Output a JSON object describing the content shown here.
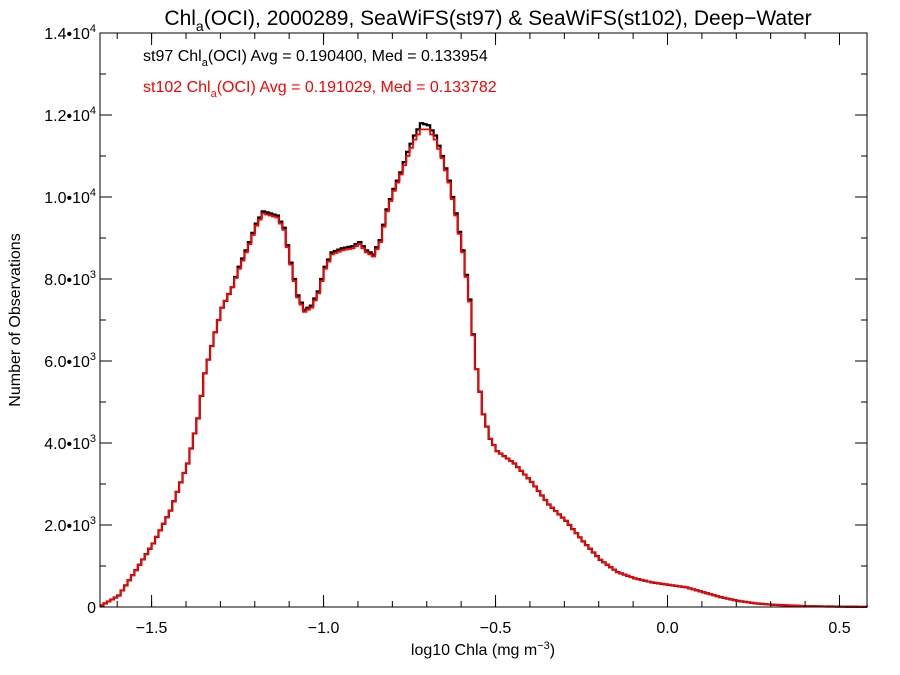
{
  "chart_data": {
    "type": "line",
    "title": {
      "main": "Chl",
      "sub": "a",
      "rest": "(OCI), 2000289, SeaWiFS(st97) & SeaWiFS(st102), Deep−Water"
    },
    "xlabel": {
      "main": "log10 Chla (mg m",
      "sup": "−3",
      "close": ")"
    },
    "ylabel": "Number of Observations",
    "xlim": [
      -1.65,
      0.58
    ],
    "ylim": [
      0,
      14000
    ],
    "x_ticks": [
      {
        "value": -1.5,
        "label": "−1.5"
      },
      {
        "value": -1.0,
        "label": "−1.0"
      },
      {
        "value": -0.5,
        "label": "−0.5"
      },
      {
        "value": 0.0,
        "label": "0.0"
      },
      {
        "value": 0.5,
        "label": "0.5"
      }
    ],
    "y_ticks": [
      {
        "value": 0,
        "mant": "0",
        "exp": ""
      },
      {
        "value": 2000,
        "mant": "2.0•10",
        "exp": "3"
      },
      {
        "value": 4000,
        "mant": "4.0•10",
        "exp": "3"
      },
      {
        "value": 6000,
        "mant": "6.0•10",
        "exp": "3"
      },
      {
        "value": 8000,
        "mant": "8.0•10",
        "exp": "3"
      },
      {
        "value": 10000,
        "mant": "1.0•10",
        "exp": "4"
      },
      {
        "value": 12000,
        "mant": "1.2•10",
        "exp": "4"
      },
      {
        "value": 14000,
        "mant": "1.4•10",
        "exp": "4"
      }
    ],
    "x_minor_step": 0.1,
    "y_minor_step": 1000,
    "legend": [
      {
        "prefix": "st97 Chl",
        "sub": "a",
        "suffix": "(OCI) Avg = 0.190400, Med = 0.133954",
        "color": "#000000"
      },
      {
        "prefix": "st102 Chl",
        "sub": "a",
        "suffix": "(OCI) Avg = 0.191029, Med = 0.133782",
        "color": "#ff0000"
      }
    ],
    "legend_position": "top-left",
    "grid": false,
    "series": [
      {
        "name": "st97",
        "color": "#000000",
        "points": [
          [
            -1.65,
            40
          ],
          [
            -1.6,
            280
          ],
          [
            -1.55,
            900
          ],
          [
            -1.5,
            1550
          ],
          [
            -1.45,
            2350
          ],
          [
            -1.4,
            3500
          ],
          [
            -1.37,
            4600
          ],
          [
            -1.35,
            5700
          ],
          [
            -1.32,
            6700
          ],
          [
            -1.3,
            7300
          ],
          [
            -1.27,
            7800
          ],
          [
            -1.25,
            8300
          ],
          [
            -1.22,
            8900
          ],
          [
            -1.2,
            9350
          ],
          [
            -1.18,
            9650
          ],
          [
            -1.16,
            9600
          ],
          [
            -1.14,
            9550
          ],
          [
            -1.12,
            9250
          ],
          [
            -1.1,
            8400
          ],
          [
            -1.08,
            7600
          ],
          [
            -1.06,
            7250
          ],
          [
            -1.04,
            7350
          ],
          [
            -1.02,
            7700
          ],
          [
            -1.0,
            8300
          ],
          [
            -0.98,
            8650
          ],
          [
            -0.95,
            8750
          ],
          [
            -0.92,
            8800
          ],
          [
            -0.9,
            8900
          ],
          [
            -0.88,
            8700
          ],
          [
            -0.86,
            8600
          ],
          [
            -0.84,
            8950
          ],
          [
            -0.82,
            9700
          ],
          [
            -0.8,
            10200
          ],
          [
            -0.78,
            10600
          ],
          [
            -0.76,
            11100
          ],
          [
            -0.74,
            11500
          ],
          [
            -0.72,
            11800
          ],
          [
            -0.7,
            11750
          ],
          [
            -0.68,
            11500
          ],
          [
            -0.66,
            11000
          ],
          [
            -0.64,
            10400
          ],
          [
            -0.62,
            9600
          ],
          [
            -0.6,
            8700
          ],
          [
            -0.58,
            7500
          ],
          [
            -0.56,
            5800
          ],
          [
            -0.54,
            4700
          ],
          [
            -0.52,
            4100
          ],
          [
            -0.5,
            3800
          ],
          [
            -0.45,
            3500
          ],
          [
            -0.4,
            3050
          ],
          [
            -0.35,
            2500
          ],
          [
            -0.3,
            2100
          ],
          [
            -0.25,
            1600
          ],
          [
            -0.2,
            1150
          ],
          [
            -0.15,
            850
          ],
          [
            -0.1,
            700
          ],
          [
            -0.05,
            600
          ],
          [
            0.0,
            540
          ],
          [
            0.05,
            480
          ],
          [
            0.1,
            360
          ],
          [
            0.15,
            240
          ],
          [
            0.2,
            150
          ],
          [
            0.25,
            90
          ],
          [
            0.3,
            55
          ],
          [
            0.4,
            20
          ],
          [
            0.5,
            8
          ],
          [
            0.58,
            3
          ]
        ]
      },
      {
        "name": "st102",
        "color": "#ff0000",
        "points": [
          [
            -1.65,
            40
          ],
          [
            -1.6,
            280
          ],
          [
            -1.55,
            900
          ],
          [
            -1.5,
            1550
          ],
          [
            -1.45,
            2350
          ],
          [
            -1.4,
            3500
          ],
          [
            -1.37,
            4600
          ],
          [
            -1.35,
            5700
          ],
          [
            -1.32,
            6700
          ],
          [
            -1.3,
            7300
          ],
          [
            -1.27,
            7800
          ],
          [
            -1.25,
            8250
          ],
          [
            -1.22,
            8850
          ],
          [
            -1.2,
            9300
          ],
          [
            -1.18,
            9600
          ],
          [
            -1.16,
            9550
          ],
          [
            -1.14,
            9500
          ],
          [
            -1.12,
            9200
          ],
          [
            -1.1,
            8350
          ],
          [
            -1.08,
            7550
          ],
          [
            -1.06,
            7200
          ],
          [
            -1.04,
            7300
          ],
          [
            -1.02,
            7650
          ],
          [
            -1.0,
            8250
          ],
          [
            -0.98,
            8600
          ],
          [
            -0.95,
            8700
          ],
          [
            -0.92,
            8750
          ],
          [
            -0.9,
            8850
          ],
          [
            -0.88,
            8650
          ],
          [
            -0.86,
            8550
          ],
          [
            -0.84,
            8900
          ],
          [
            -0.82,
            9650
          ],
          [
            -0.8,
            10150
          ],
          [
            -0.78,
            10550
          ],
          [
            -0.76,
            11000
          ],
          [
            -0.74,
            11400
          ],
          [
            -0.72,
            11650
          ],
          [
            -0.7,
            11650
          ],
          [
            -0.68,
            11400
          ],
          [
            -0.66,
            10950
          ],
          [
            -0.64,
            10350
          ],
          [
            -0.62,
            9550
          ],
          [
            -0.6,
            8650
          ],
          [
            -0.58,
            7450
          ],
          [
            -0.56,
            5800
          ],
          [
            -0.54,
            4700
          ],
          [
            -0.52,
            4100
          ],
          [
            -0.5,
            3800
          ],
          [
            -0.45,
            3500
          ],
          [
            -0.4,
            3050
          ],
          [
            -0.35,
            2500
          ],
          [
            -0.3,
            2100
          ],
          [
            -0.25,
            1600
          ],
          [
            -0.2,
            1150
          ],
          [
            -0.15,
            850
          ],
          [
            -0.1,
            700
          ],
          [
            -0.05,
            600
          ],
          [
            0.0,
            540
          ],
          [
            0.05,
            480
          ],
          [
            0.1,
            360
          ],
          [
            0.15,
            240
          ],
          [
            0.2,
            150
          ],
          [
            0.25,
            90
          ],
          [
            0.3,
            55
          ],
          [
            0.4,
            20
          ],
          [
            0.5,
            8
          ],
          [
            0.58,
            3
          ]
        ]
      }
    ]
  }
}
